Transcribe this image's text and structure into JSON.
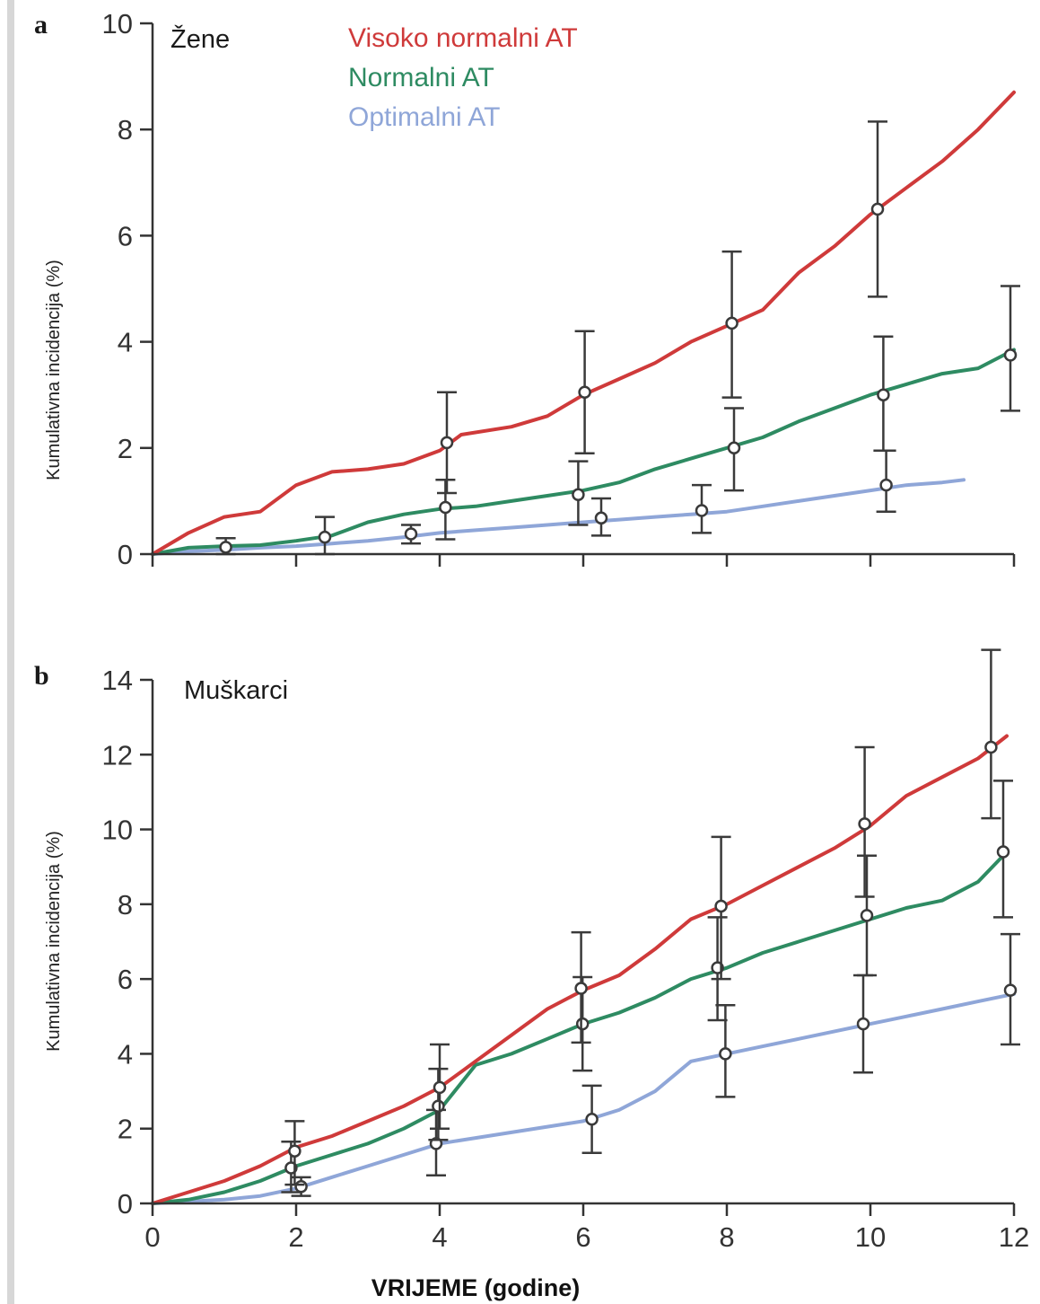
{
  "colors": {
    "high_normal": "#cf3a3a",
    "normal": "#2e8b62",
    "optimal": "#8fa6d8",
    "error_bar": "#3a3a3a",
    "axis": "#333333"
  },
  "chart_data": [
    {
      "type": "line",
      "panel_letter": "a",
      "title": "Žene",
      "xlabel": "",
      "ylabel": "Kumulativna incidencija (%)",
      "xlim": [
        0,
        12
      ],
      "ylim": [
        0,
        10
      ],
      "xticks": [
        0,
        2,
        4,
        6,
        8,
        10,
        12
      ],
      "yticks": [
        0,
        2,
        4,
        6,
        8,
        10
      ],
      "xtick_labels": [
        "",
        "",
        "",
        "",
        "",
        "",
        ""
      ],
      "ytick_labels": [
        "0",
        "2",
        "4",
        "6",
        "8",
        "10"
      ],
      "legend": [
        "Visoko normalni AT",
        "Normalni AT",
        "Optimalni AT"
      ],
      "legend_placement": "top-center",
      "grid": false,
      "series": [
        {
          "name": "Visoko normalni AT",
          "color_key": "high_normal",
          "x": [
            0,
            0.5,
            1,
            1.5,
            2,
            2.5,
            3,
            3.5,
            4,
            4.3,
            5,
            5.5,
            6,
            6.5,
            7,
            7.5,
            8,
            8.5,
            9,
            9.5,
            10,
            10.5,
            11,
            11.5,
            12
          ],
          "y": [
            0,
            0.4,
            0.7,
            0.8,
            1.3,
            1.55,
            1.6,
            1.7,
            1.95,
            2.25,
            2.4,
            2.6,
            3.0,
            3.3,
            3.6,
            4.0,
            4.3,
            4.6,
            5.3,
            5.8,
            6.4,
            6.9,
            7.4,
            8.0,
            8.7
          ],
          "markers": [
            {
              "x": 4.1,
              "y": 2.1,
              "lo": 1.15,
              "hi": 3.05
            },
            {
              "x": 6.02,
              "y": 3.05,
              "lo": 1.9,
              "hi": 4.2
            },
            {
              "x": 8.07,
              "y": 4.35,
              "lo": 2.95,
              "hi": 5.7
            },
            {
              "x": 10.1,
              "y": 6.5,
              "lo": 4.85,
              "hi": 8.15
            }
          ]
        },
        {
          "name": "Normalni AT",
          "color_key": "normal",
          "x": [
            0,
            0.5,
            1,
            1.5,
            2,
            2.5,
            3,
            3.5,
            4,
            4.5,
            5,
            5.5,
            6,
            6.5,
            7,
            7.5,
            8,
            8.5,
            9,
            9.5,
            10,
            10.5,
            11,
            11.5,
            12
          ],
          "y": [
            0,
            0.12,
            0.15,
            0.17,
            0.25,
            0.35,
            0.6,
            0.75,
            0.85,
            0.9,
            1.0,
            1.1,
            1.2,
            1.35,
            1.6,
            1.8,
            2.0,
            2.2,
            2.5,
            2.75,
            3.0,
            3.2,
            3.4,
            3.5,
            3.85
          ],
          "markers": [
            {
              "x": 1.02,
              "y": 0.13,
              "lo": 0.0,
              "hi": 0.3
            },
            {
              "x": 2.4,
              "y": 0.32,
              "lo": 0.0,
              "hi": 0.7
            },
            {
              "x": 4.08,
              "y": 0.88,
              "lo": 0.28,
              "hi": 1.4
            },
            {
              "x": 5.93,
              "y": 1.12,
              "lo": 0.55,
              "hi": 1.75
            },
            {
              "x": 8.1,
              "y": 2.0,
              "lo": 1.2,
              "hi": 2.75
            },
            {
              "x": 10.18,
              "y": 3.0,
              "lo": 1.95,
              "hi": 4.1
            },
            {
              "x": 11.95,
              "y": 3.75,
              "lo": 2.7,
              "hi": 5.05
            }
          ]
        },
        {
          "name": "Optimalni AT",
          "color_key": "optimal",
          "x": [
            0,
            0.5,
            1,
            1.5,
            2,
            2.5,
            3,
            3.5,
            4,
            4.5,
            5,
            5.5,
            6,
            6.5,
            7,
            7.5,
            8,
            8.5,
            9,
            9.5,
            10,
            10.5,
            11,
            11.3
          ],
          "y": [
            0,
            0.05,
            0.08,
            0.12,
            0.15,
            0.2,
            0.25,
            0.32,
            0.4,
            0.45,
            0.5,
            0.55,
            0.6,
            0.65,
            0.7,
            0.75,
            0.8,
            0.9,
            1.0,
            1.1,
            1.2,
            1.3,
            1.35,
            1.4
          ],
          "markers": [
            {
              "x": 3.6,
              "y": 0.38,
              "lo": 0.2,
              "hi": 0.55
            },
            {
              "x": 6.25,
              "y": 0.68,
              "lo": 0.35,
              "hi": 1.05
            },
            {
              "x": 7.65,
              "y": 0.82,
              "lo": 0.4,
              "hi": 1.3
            },
            {
              "x": 10.22,
              "y": 1.3,
              "lo": 0.8,
              "hi": 1.95
            }
          ]
        }
      ]
    },
    {
      "type": "line",
      "panel_letter": "b",
      "title": "Muškarci",
      "xlabel": "VRIJEME (godine)",
      "ylabel": "Kumulativna incidencija (%)",
      "xlim": [
        0,
        12
      ],
      "ylim": [
        0,
        14
      ],
      "xticks": [
        0,
        2,
        4,
        6,
        8,
        10,
        12
      ],
      "yticks": [
        0,
        2,
        4,
        6,
        8,
        10,
        12,
        14
      ],
      "xtick_labels": [
        "0",
        "2",
        "4",
        "6",
        "8",
        "10",
        "12"
      ],
      "ytick_labels": [
        "0",
        "2",
        "4",
        "6",
        "8",
        "10",
        "12",
        "14"
      ],
      "grid": false,
      "series": [
        {
          "name": "Visoko normalni AT",
          "color_key": "high_normal",
          "x": [
            0,
            0.5,
            1,
            1.5,
            2,
            2.5,
            3,
            3.5,
            4,
            4.5,
            5,
            5.5,
            6,
            6.5,
            7,
            7.5,
            8,
            8.5,
            9,
            9.5,
            10,
            10.5,
            11,
            11.5,
            11.9
          ],
          "y": [
            0,
            0.3,
            0.6,
            1.0,
            1.5,
            1.8,
            2.2,
            2.6,
            3.1,
            3.8,
            4.5,
            5.2,
            5.7,
            6.1,
            6.8,
            7.6,
            8.0,
            8.5,
            9.0,
            9.5,
            10.1,
            10.9,
            11.4,
            11.9,
            12.5
          ],
          "markers": [
            {
              "x": 1.98,
              "y": 1.4,
              "lo": 0.5,
              "hi": 2.2
            },
            {
              "x": 4.0,
              "y": 3.1,
              "lo": 2.0,
              "hi": 4.25
            },
            {
              "x": 5.97,
              "y": 5.75,
              "lo": 4.3,
              "hi": 7.25
            },
            {
              "x": 7.92,
              "y": 7.95,
              "lo": 6.0,
              "hi": 9.8
            },
            {
              "x": 9.92,
              "y": 10.15,
              "lo": 8.2,
              "hi": 12.2
            },
            {
              "x": 11.68,
              "y": 12.2,
              "lo": 10.3,
              "hi": 14.8
            }
          ]
        },
        {
          "name": "Normalni AT",
          "color_key": "normal",
          "x": [
            0,
            0.5,
            1,
            1.5,
            2,
            2.5,
            3,
            3.5,
            4,
            4.5,
            5,
            5.5,
            6,
            6.5,
            7,
            7.5,
            8,
            8.5,
            9,
            9.5,
            10,
            10.5,
            11,
            11.5,
            11.9
          ],
          "y": [
            0,
            0.1,
            0.3,
            0.6,
            1.0,
            1.3,
            1.6,
            2.0,
            2.5,
            3.7,
            4.0,
            4.4,
            4.8,
            5.1,
            5.5,
            6.0,
            6.3,
            6.7,
            7.0,
            7.3,
            7.6,
            7.9,
            8.1,
            8.6,
            9.4
          ],
          "markers": [
            {
              "x": 1.93,
              "y": 0.95,
              "lo": 0.3,
              "hi": 1.65
            },
            {
              "x": 3.98,
              "y": 2.6,
              "lo": 1.7,
              "hi": 3.6
            },
            {
              "x": 5.99,
              "y": 4.8,
              "lo": 3.55,
              "hi": 6.05
            },
            {
              "x": 7.87,
              "y": 6.3,
              "lo": 4.9,
              "hi": 7.65
            },
            {
              "x": 9.95,
              "y": 7.7,
              "lo": 6.1,
              "hi": 9.3
            },
            {
              "x": 11.85,
              "y": 9.4,
              "lo": 7.65,
              "hi": 11.3
            }
          ]
        },
        {
          "name": "Optimalni AT",
          "color_key": "optimal",
          "x": [
            0,
            0.5,
            1,
            1.5,
            2,
            2.5,
            3,
            3.5,
            4,
            4.5,
            5,
            5.5,
            6,
            6.5,
            7,
            7.5,
            8,
            8.5,
            9,
            9.5,
            10,
            10.5,
            11,
            11.5,
            12
          ],
          "y": [
            0,
            0.05,
            0.1,
            0.2,
            0.4,
            0.7,
            1.0,
            1.3,
            1.6,
            1.75,
            1.9,
            2.05,
            2.2,
            2.5,
            3.0,
            3.8,
            4.0,
            4.2,
            4.4,
            4.6,
            4.8,
            5.0,
            5.2,
            5.4,
            5.6
          ],
          "markers": [
            {
              "x": 2.07,
              "y": 0.45,
              "lo": 0.2,
              "hi": 0.7
            },
            {
              "x": 3.95,
              "y": 1.6,
              "lo": 0.75,
              "hi": 2.5
            },
            {
              "x": 6.12,
              "y": 2.25,
              "lo": 1.35,
              "hi": 3.15
            },
            {
              "x": 7.98,
              "y": 4.0,
              "lo": 2.85,
              "hi": 5.3
            },
            {
              "x": 9.9,
              "y": 4.8,
              "lo": 3.5,
              "hi": 6.1
            },
            {
              "x": 11.95,
              "y": 5.7,
              "lo": 4.25,
              "hi": 7.2
            }
          ]
        }
      ]
    }
  ]
}
